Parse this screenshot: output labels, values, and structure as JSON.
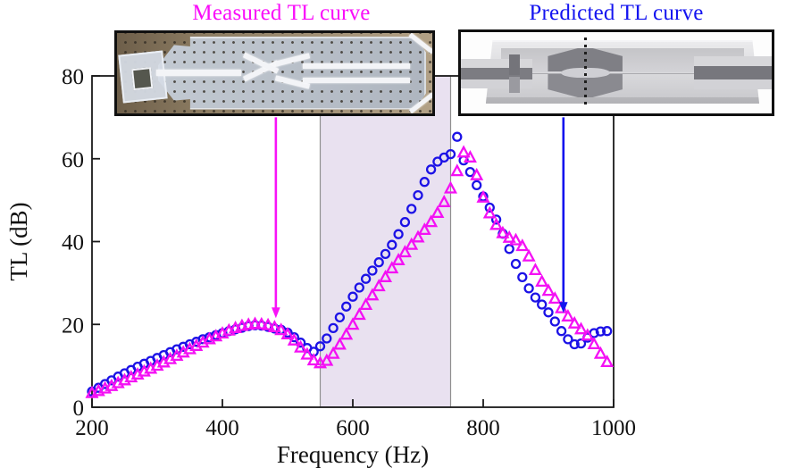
{
  "titles": {
    "measured": "Measured TL curve",
    "predicted": "Predicted TL curve"
  },
  "colors": {
    "measured_marker": "#f411f4",
    "predicted_marker": "#1c12e6",
    "measured_title": "#fa0cfa",
    "predicted_title": "#1414f0",
    "measured_arrow": "#f812f8",
    "predicted_arrow": "#1414ee",
    "band_fill": "#e9e1f0",
    "band_edge": "#8f8f8f",
    "axis": "#1a1a1a"
  },
  "axes": {
    "xlabel": "Frequency (Hz)",
    "ylabel": "TL (dB)",
    "xlim": [
      200,
      1000
    ],
    "ylim": [
      0,
      80
    ],
    "x_tick_values": [
      200,
      400,
      600,
      800,
      1000
    ],
    "x_tick_labels": [
      "200",
      "400",
      "600",
      "800",
      "1000"
    ],
    "y_tick_values": [
      0,
      20,
      40,
      60,
      80
    ],
    "y_tick_labels": [
      "0",
      "20",
      "40",
      "60",
      "80"
    ]
  },
  "chart_data": {
    "type": "scatter",
    "title": "",
    "xlabel": "Frequency (Hz)",
    "ylabel": "TL (dB)",
    "xlim": [
      200,
      1000
    ],
    "ylim": [
      0,
      80
    ],
    "grid": false,
    "highlight_band_hz": [
      550,
      750
    ],
    "series": [
      {
        "name": "Predicted TL curve",
        "marker": "circle",
        "color": "#1c12e6",
        "points": [
          [
            200,
            3.8
          ],
          [
            210,
            4.7
          ],
          [
            220,
            5.6
          ],
          [
            230,
            6.5
          ],
          [
            240,
            7.4
          ],
          [
            250,
            8.2
          ],
          [
            260,
            9.0
          ],
          [
            270,
            9.8
          ],
          [
            280,
            10.5
          ],
          [
            290,
            11.2
          ],
          [
            300,
            11.9
          ],
          [
            310,
            12.6
          ],
          [
            320,
            13.3
          ],
          [
            330,
            14.0
          ],
          [
            340,
            14.6
          ],
          [
            350,
            15.2
          ],
          [
            360,
            15.8
          ],
          [
            370,
            16.4
          ],
          [
            380,
            16.9
          ],
          [
            390,
            17.4
          ],
          [
            400,
            17.9
          ],
          [
            410,
            18.4
          ],
          [
            420,
            18.8
          ],
          [
            430,
            19.2
          ],
          [
            440,
            19.6
          ],
          [
            450,
            19.8
          ],
          [
            460,
            19.7
          ],
          [
            470,
            19.4
          ],
          [
            480,
            19.0
          ],
          [
            490,
            18.7
          ],
          [
            500,
            18.0
          ],
          [
            510,
            16.9
          ],
          [
            520,
            15.6
          ],
          [
            530,
            14.3
          ],
          [
            540,
            13.4
          ],
          [
            550,
            14.7
          ],
          [
            560,
            16.6
          ],
          [
            570,
            19.1
          ],
          [
            580,
            21.7
          ],
          [
            590,
            24.3
          ],
          [
            600,
            26.7
          ],
          [
            610,
            28.9
          ],
          [
            620,
            31.0
          ],
          [
            630,
            33.0
          ],
          [
            640,
            35.0
          ],
          [
            650,
            37.0
          ],
          [
            660,
            39.2
          ],
          [
            670,
            41.8
          ],
          [
            680,
            44.7
          ],
          [
            690,
            47.9
          ],
          [
            700,
            51.2
          ],
          [
            710,
            54.4
          ],
          [
            720,
            57.4
          ],
          [
            730,
            59.3
          ],
          [
            740,
            60.3
          ],
          [
            750,
            61.1
          ],
          [
            760,
            65.3
          ],
          [
            770,
            59.6
          ],
          [
            780,
            56.8
          ],
          [
            790,
            53.6
          ],
          [
            800,
            50.9
          ],
          [
            810,
            48.2
          ],
          [
            820,
            45.3
          ],
          [
            830,
            41.9
          ],
          [
            840,
            38.2
          ],
          [
            850,
            34.6
          ],
          [
            860,
            31.4
          ],
          [
            870,
            28.7
          ],
          [
            880,
            26.5
          ],
          [
            890,
            24.8
          ],
          [
            900,
            22.9
          ],
          [
            910,
            20.7
          ],
          [
            920,
            18.4
          ],
          [
            930,
            16.4
          ],
          [
            940,
            15.2
          ],
          [
            950,
            15.4
          ],
          [
            960,
            16.8
          ],
          [
            970,
            17.9
          ],
          [
            980,
            18.3
          ],
          [
            990,
            18.4
          ]
        ]
      },
      {
        "name": "Measured TL curve",
        "marker": "triangle",
        "color": "#f411f4",
        "points": [
          [
            200,
            3.4
          ],
          [
            210,
            3.9
          ],
          [
            220,
            4.5
          ],
          [
            230,
            5.1
          ],
          [
            240,
            5.8
          ],
          [
            250,
            6.5
          ],
          [
            260,
            7.2
          ],
          [
            270,
            7.9
          ],
          [
            280,
            8.6
          ],
          [
            290,
            9.3
          ],
          [
            300,
            10.0
          ],
          [
            310,
            10.8
          ],
          [
            320,
            11.6
          ],
          [
            330,
            12.4
          ],
          [
            340,
            13.2
          ],
          [
            350,
            14.0
          ],
          [
            360,
            14.8
          ],
          [
            370,
            15.6
          ],
          [
            380,
            16.4
          ],
          [
            390,
            17.1
          ],
          [
            400,
            17.8
          ],
          [
            410,
            18.5
          ],
          [
            420,
            19.1
          ],
          [
            430,
            19.6
          ],
          [
            440,
            19.9
          ],
          [
            450,
            20.1
          ],
          [
            460,
            20.0
          ],
          [
            470,
            19.8
          ],
          [
            480,
            19.3
          ],
          [
            490,
            18.6
          ],
          [
            500,
            17.6
          ],
          [
            510,
            16.1
          ],
          [
            520,
            14.4
          ],
          [
            530,
            12.7
          ],
          [
            540,
            11.3
          ],
          [
            550,
            10.6
          ],
          [
            560,
            11.2
          ],
          [
            570,
            12.9
          ],
          [
            580,
            15.1
          ],
          [
            590,
            17.5
          ],
          [
            600,
            19.9
          ],
          [
            610,
            22.3
          ],
          [
            620,
            24.7
          ],
          [
            630,
            27.0
          ],
          [
            640,
            29.2
          ],
          [
            650,
            31.4
          ],
          [
            660,
            33.5
          ],
          [
            670,
            35.5
          ],
          [
            680,
            37.4
          ],
          [
            690,
            39.2
          ],
          [
            700,
            41.0
          ],
          [
            710,
            42.8
          ],
          [
            720,
            44.7
          ],
          [
            730,
            46.9
          ],
          [
            740,
            49.5
          ],
          [
            750,
            52.8
          ],
          [
            760,
            57.0
          ],
          [
            770,
            61.5
          ],
          [
            780,
            60.3
          ],
          [
            790,
            56.0
          ],
          [
            800,
            50.6
          ],
          [
            810,
            46.8
          ],
          [
            820,
            44.0
          ],
          [
            830,
            42.0
          ],
          [
            840,
            40.9
          ],
          [
            850,
            40.3
          ],
          [
            860,
            38.9
          ],
          [
            870,
            36.4
          ],
          [
            880,
            33.1
          ],
          [
            890,
            30.3
          ],
          [
            900,
            28.1
          ],
          [
            910,
            26.2
          ],
          [
            920,
            23.9
          ],
          [
            930,
            21.9
          ],
          [
            940,
            20.2
          ],
          [
            950,
            18.8
          ],
          [
            960,
            17.3
          ],
          [
            970,
            15.2
          ],
          [
            980,
            12.9
          ],
          [
            990,
            10.9
          ]
        ]
      }
    ]
  },
  "annotations": {
    "measured_arrow": {
      "x_hz": 482,
      "from_db": 70.0,
      "to_db": 21.5
    },
    "predicted_arrow": {
      "x_hz": 923,
      "from_db": 70.0,
      "to_db": 22.8
    }
  }
}
